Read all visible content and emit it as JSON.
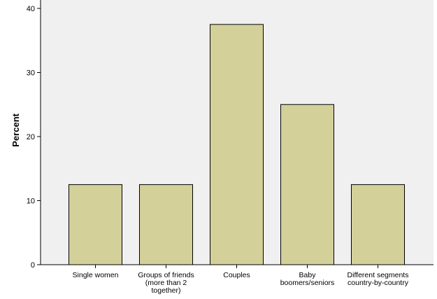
{
  "chart_data": {
    "type": "bar",
    "categories": [
      [
        "Single women"
      ],
      [
        "Groups of friends",
        "(more than 2",
        "together)"
      ],
      [
        "Couples"
      ],
      [
        "Baby",
        "boomers/seniors"
      ],
      [
        "Different segments",
        "country-by-country"
      ]
    ],
    "values": [
      12.5,
      12.5,
      37.5,
      25.0,
      12.5
    ],
    "ylabel": "Percent",
    "xlabel": "",
    "ylim": [
      0,
      40
    ],
    "yticks": [
      0,
      10,
      20,
      30,
      40
    ],
    "grid": false,
    "bar_color": "#d4d09a",
    "bar_edge_color": "#000000",
    "plot_background": "#f0f0f0"
  }
}
